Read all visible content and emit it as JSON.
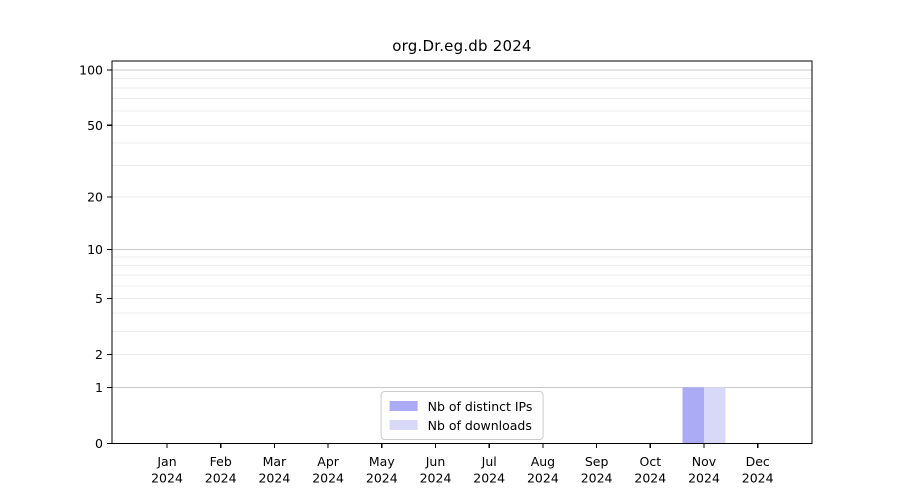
{
  "chart_data": {
    "type": "bar",
    "title": "org.Dr.eg.db 2024",
    "x_axis": {
      "months": [
        "Jan",
        "Feb",
        "Mar",
        "Apr",
        "May",
        "Jun",
        "Jul",
        "Aug",
        "Sep",
        "Oct",
        "Nov",
        "Dec"
      ],
      "year": "2024"
    },
    "y_axis": {
      "scale": "log10(value+1)",
      "max": 100,
      "ticks": [
        0,
        1,
        2,
        5,
        10,
        20,
        50,
        100
      ],
      "minor_gridlines": [
        2,
        3,
        4,
        5,
        6,
        7,
        8,
        9,
        20,
        30,
        40,
        50,
        60,
        70,
        80,
        90
      ],
      "major_gridlines": [
        1,
        10,
        100
      ]
    },
    "series": [
      {
        "name": "Nb of distinct IPs",
        "color": "#aaaaf5",
        "values": [
          0,
          0,
          0,
          0,
          0,
          0,
          0,
          0,
          0,
          0,
          1,
          0
        ]
      },
      {
        "name": "Nb of downloads",
        "color": "#d8d8f8",
        "values": [
          0,
          0,
          0,
          0,
          0,
          0,
          0,
          0,
          0,
          0,
          1,
          0
        ]
      }
    ],
    "legend_position": "lower center",
    "grid": true,
    "colors": {
      "minor_grid": "#ececec",
      "major_grid": "#c9c9c9",
      "axis": "#000000",
      "background": "#ffffff"
    }
  }
}
